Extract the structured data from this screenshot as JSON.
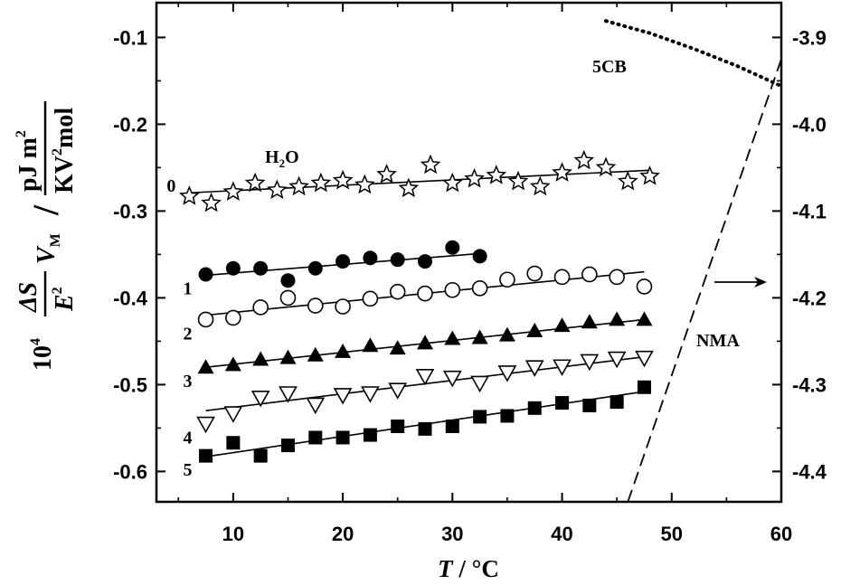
{
  "chart_data": {
    "type": "scatter",
    "xlabel": {
      "symbol": "T",
      "unit": "°C"
    },
    "ylabel": {
      "prefix": "10",
      "prefix_exp": "4",
      "num": "ΔS",
      "den": "E",
      "den_exp": "2",
      "vm": "V",
      "vm_sub": "M",
      "unit_num": "pJ m",
      "unit_num_exp": "2",
      "unit_den_a": "KV",
      "unit_den_exp": "2",
      "unit_den_b": "mol",
      "slash": "/"
    },
    "xlim": [
      3,
      60
    ],
    "ylim": [
      -0.635,
      -0.06
    ],
    "y2lim": [
      -4.435,
      -3.86
    ],
    "xticks": [
      10,
      20,
      30,
      40,
      50,
      60
    ],
    "yticks": [
      -0.6,
      -0.5,
      -0.4,
      -0.3,
      -0.2,
      -0.1
    ],
    "ytick_labels": [
      "-0.6",
      "-0.5",
      "-0.4",
      "-0.3",
      "-0.2",
      "-0.1"
    ],
    "y2ticks": [
      -4.4,
      -4.3,
      -4.2,
      -4.1,
      -4.0,
      -3.9
    ],
    "y2tick_labels": [
      "-4.4",
      "-4.3",
      "-4.2",
      "-4.1",
      "-4.0",
      "-3.9"
    ],
    "grid": false,
    "series": [
      {
        "label": "0",
        "marker": "star-open",
        "compound": "H2O",
        "points": [
          [
            6,
            -0.283
          ],
          [
            8,
            -0.291
          ],
          [
            10,
            -0.278
          ],
          [
            12,
            -0.268
          ],
          [
            14,
            -0.276
          ],
          [
            16,
            -0.272
          ],
          [
            18,
            -0.268
          ],
          [
            20,
            -0.265
          ],
          [
            22,
            -0.27
          ],
          [
            24,
            -0.258
          ],
          [
            26,
            -0.274
          ],
          [
            28,
            -0.247
          ],
          [
            30,
            -0.268
          ],
          [
            32,
            -0.263
          ],
          [
            34,
            -0.259
          ],
          [
            36,
            -0.266
          ],
          [
            38,
            -0.272
          ],
          [
            40,
            -0.256
          ],
          [
            42,
            -0.242
          ],
          [
            44,
            -0.25
          ],
          [
            46,
            -0.266
          ],
          [
            48,
            -0.26
          ]
        ],
        "fit": [
          [
            6,
            -0.279
          ],
          [
            48,
            -0.253
          ]
        ]
      },
      {
        "label": "1",
        "marker": "circle-filled",
        "points": [
          [
            7.5,
            -0.373
          ],
          [
            10,
            -0.366
          ],
          [
            12.5,
            -0.366
          ],
          [
            15,
            -0.38
          ],
          [
            17.5,
            -0.366
          ],
          [
            20,
            -0.358
          ],
          [
            22.5,
            -0.354
          ],
          [
            25,
            -0.356
          ],
          [
            27.5,
            -0.358
          ],
          [
            30,
            -0.342
          ],
          [
            32.5,
            -0.352
          ]
        ],
        "fit": [
          [
            7.5,
            -0.374
          ],
          [
            32.5,
            -0.349
          ]
        ]
      },
      {
        "label": "2",
        "marker": "circle-open",
        "points": [
          [
            7.5,
            -0.425
          ],
          [
            10,
            -0.423
          ],
          [
            12.5,
            -0.411
          ],
          [
            15,
            -0.4
          ],
          [
            17.5,
            -0.409
          ],
          [
            20,
            -0.41
          ],
          [
            22.5,
            -0.401
          ],
          [
            25,
            -0.393
          ],
          [
            27.5,
            -0.395
          ],
          [
            30,
            -0.391
          ],
          [
            32.5,
            -0.389
          ],
          [
            35,
            -0.379
          ],
          [
            37.5,
            -0.372
          ],
          [
            40,
            -0.376
          ],
          [
            42.5,
            -0.373
          ],
          [
            45,
            -0.376
          ],
          [
            47.5,
            -0.387
          ]
        ],
        "fit": [
          [
            7.5,
            -0.42
          ],
          [
            47.5,
            -0.37
          ]
        ]
      },
      {
        "label": "3",
        "marker": "triangle-up-filled",
        "points": [
          [
            7.5,
            -0.48
          ],
          [
            10,
            -0.477
          ],
          [
            12.5,
            -0.471
          ],
          [
            15,
            -0.469
          ],
          [
            17.5,
            -0.466
          ],
          [
            20,
            -0.462
          ],
          [
            22.5,
            -0.455
          ],
          [
            25,
            -0.458
          ],
          [
            27.5,
            -0.452
          ],
          [
            30,
            -0.447
          ],
          [
            32.5,
            -0.446
          ],
          [
            35,
            -0.443
          ],
          [
            37.5,
            -0.438
          ],
          [
            40,
            -0.432
          ],
          [
            42.5,
            -0.428
          ],
          [
            45,
            -0.425
          ],
          [
            47.5,
            -0.425
          ]
        ],
        "fit": [
          [
            7.5,
            -0.48
          ],
          [
            47.5,
            -0.425
          ]
        ]
      },
      {
        "label": "4",
        "marker": "triangle-down-open",
        "points": [
          [
            7.5,
            -0.545
          ],
          [
            10,
            -0.533
          ],
          [
            12.5,
            -0.515
          ],
          [
            15,
            -0.51
          ],
          [
            17.5,
            -0.523
          ],
          [
            20,
            -0.512
          ],
          [
            22.5,
            -0.51
          ],
          [
            25,
            -0.506
          ],
          [
            27.5,
            -0.49
          ],
          [
            30,
            -0.492
          ],
          [
            32.5,
            -0.498
          ],
          [
            35,
            -0.486
          ],
          [
            37.5,
            -0.48
          ],
          [
            40,
            -0.479
          ],
          [
            42.5,
            -0.473
          ],
          [
            45,
            -0.47
          ],
          [
            47.5,
            -0.469
          ]
        ],
        "fit": [
          [
            7.5,
            -0.53
          ],
          [
            47.5,
            -0.468
          ]
        ]
      },
      {
        "label": "5",
        "marker": "square-filled",
        "points": [
          [
            7.5,
            -0.582
          ],
          [
            10,
            -0.567
          ],
          [
            12.5,
            -0.582
          ],
          [
            15,
            -0.57
          ],
          [
            17.5,
            -0.561
          ],
          [
            20,
            -0.561
          ],
          [
            22.5,
            -0.558
          ],
          [
            25,
            -0.548
          ],
          [
            27.5,
            -0.551
          ],
          [
            30,
            -0.548
          ],
          [
            32.5,
            -0.537
          ],
          [
            35,
            -0.536
          ],
          [
            37.5,
            -0.527
          ],
          [
            40,
            -0.521
          ],
          [
            42.5,
            -0.524
          ],
          [
            45,
            -0.52
          ],
          [
            47.5,
            -0.503
          ]
        ],
        "fit": [
          [
            7.5,
            -0.583
          ],
          [
            47.5,
            -0.508
          ]
        ]
      }
    ],
    "right_axis_series": [
      {
        "label": "5CB",
        "style": "dotted",
        "points": [
          [
            44,
            -3.881
          ],
          [
            48,
            -3.895
          ],
          [
            52,
            -3.913
          ],
          [
            56,
            -3.933
          ],
          [
            60,
            -3.956
          ]
        ]
      },
      {
        "label": "NMA",
        "style": "dashed",
        "points": [
          [
            46,
            -4.435
          ],
          [
            60,
            -3.925
          ]
        ]
      }
    ],
    "annotations": [
      {
        "text": "→",
        "meaning": "series 1-5 correspond to left axis; NMA and 5CB curves to right axis"
      }
    ]
  }
}
